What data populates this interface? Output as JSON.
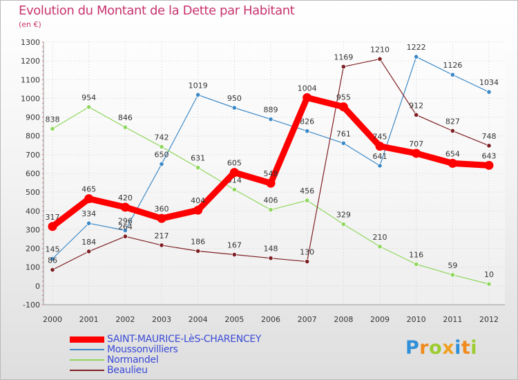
{
  "chart_data": {
    "type": "line",
    "title": "Evolution du Montant de la Dette par Habitant",
    "subtitle": "(en €)",
    "xlabel": "",
    "ylabel": "",
    "categories": [
      "2000",
      "2001",
      "2002",
      "2003",
      "2004",
      "2005",
      "2006",
      "2007",
      "2008",
      "2009",
      "2010",
      "2011",
      "2012"
    ],
    "ylim": [
      -100,
      1300
    ],
    "yticks": [
      -100,
      0,
      100,
      200,
      300,
      400,
      500,
      600,
      700,
      800,
      900,
      1000,
      1100,
      1200,
      1300
    ],
    "grid": true,
    "legend_position": "bottom-left",
    "series": [
      {
        "name": "Moussonvilliers",
        "color": "#3b88c6",
        "values": [
          145,
          334,
          296,
          650,
          1019,
          950,
          889,
          826,
          761,
          641,
          1222,
          1126,
          1034
        ]
      },
      {
        "name": "Normandel",
        "color": "#8ed65c",
        "values": [
          838,
          954,
          846,
          742,
          631,
          514,
          406,
          456,
          329,
          210,
          116,
          59,
          10
        ]
      },
      {
        "name": "Beaulieu",
        "color": "#7d1e22",
        "values": [
          86,
          184,
          264,
          217,
          186,
          167,
          148,
          130,
          1169,
          1210,
          912,
          827,
          748
        ]
      },
      {
        "name": "SAINT-MAURICE-LèS-CHARENCEY",
        "color": "#ff0000",
        "highlight": true,
        "values": [
          317,
          465,
          420,
          360,
          404,
          605,
          548,
          1004,
          955,
          745,
          707,
          654,
          643
        ]
      }
    ],
    "legend_order": [
      "SAINT-MAURICE-LèS-CHARENCEY",
      "Moussonvilliers",
      "Normandel",
      "Beaulieu"
    ]
  },
  "logo": {
    "letters": [
      {
        "ch": "P",
        "color": "#2f8fd8"
      },
      {
        "ch": "r",
        "color": "#f08a1c"
      },
      {
        "ch": "o",
        "color": "#9ccc2e"
      },
      {
        "ch": "x",
        "color": "#f0a020"
      },
      {
        "ch": "i",
        "color": "#2f8fd8"
      },
      {
        "ch": "t",
        "color": "#f08a1c"
      },
      {
        "ch": "i",
        "color": "#9ccc2e"
      }
    ]
  }
}
